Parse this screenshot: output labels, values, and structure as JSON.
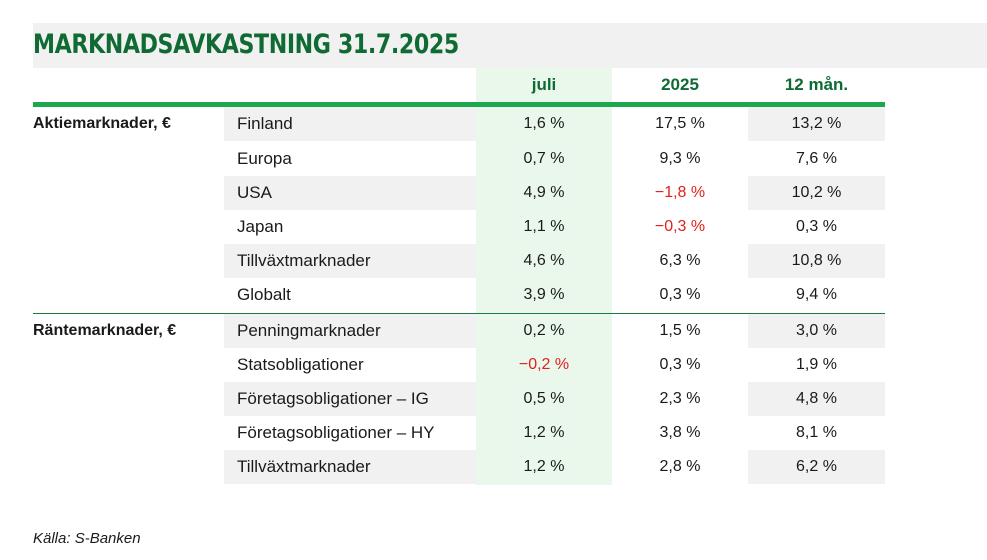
{
  "title": "MARKNADSAVKASTNING 31.7.2025",
  "columns": [
    "juli",
    "2025",
    "12 mån."
  ],
  "colors": {
    "brand_green": "#0f6b33",
    "accent_line": "#1da850",
    "negative": "#e0201c",
    "highlight_column": "#eaf8ec",
    "row_shade": "#f1f1f1"
  },
  "groups": [
    {
      "label": "Aktiemarknader, €",
      "rows": [
        {
          "name": "Finland",
          "juli": "1,6 %",
          "y2025": "17,5 %",
          "m12": "13,2 %"
        },
        {
          "name": "Europa",
          "juli": "0,7 %",
          "y2025": "9,3 %",
          "m12": "7,6 %"
        },
        {
          "name": "USA",
          "juli": "4,9 %",
          "y2025": "−1,8 %",
          "m12": "10,2 %"
        },
        {
          "name": "Japan",
          "juli": "1,1 %",
          "y2025": "−0,3 %",
          "m12": "0,3 %"
        },
        {
          "name": "Tillväxtmarknader",
          "juli": "4,6 %",
          "y2025": "6,3 %",
          "m12": "10,8 %"
        },
        {
          "name": "Globalt",
          "juli": "3,9 %",
          "y2025": "0,3 %",
          "m12": "9,4 %"
        }
      ]
    },
    {
      "label": "Räntemarknader, €",
      "rows": [
        {
          "name": "Penningmarknader",
          "juli": "0,2 %",
          "y2025": "1,5 %",
          "m12": "3,0 %"
        },
        {
          "name": "Statsobligationer",
          "juli": "−0,2 %",
          "y2025": "0,3 %",
          "m12": "1,9 %"
        },
        {
          "name": "Företagsobligationer – IG",
          "juli": "0,5 %",
          "y2025": "2,3 %",
          "m12": "4,8 %"
        },
        {
          "name": "Företagsobligationer – HY",
          "juli": "1,2 %",
          "y2025": "3,8 %",
          "m12": "8,1 %"
        },
        {
          "name": "Tillväxtmarknader",
          "juli": "1,2 %",
          "y2025": "2,8 %",
          "m12": "6,2 %"
        }
      ]
    }
  ],
  "source": "Källa: S-Banken"
}
